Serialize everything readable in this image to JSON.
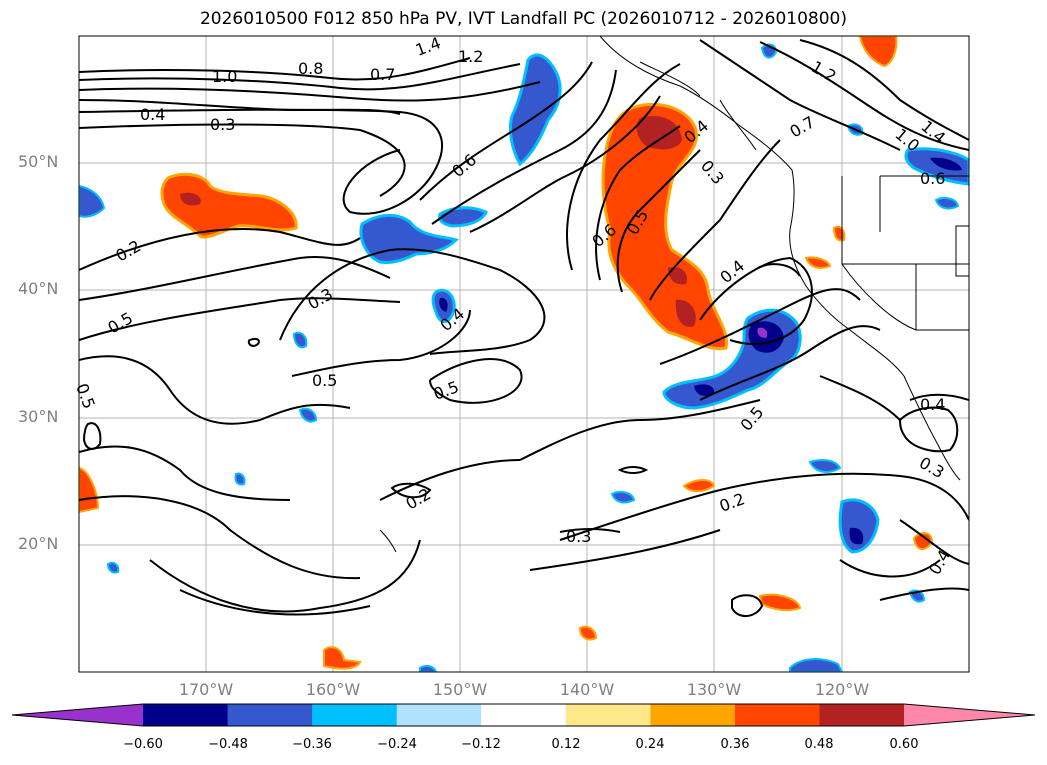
{
  "title": "2026010500 F012 850 hPa PV, IVT Landfall PC (2026010712 - 2026010800)",
  "lat_labels": [
    "50°N",
    "40°N",
    "30°N",
    "20°N"
  ],
  "lon_labels": [
    "170°W",
    "160°W",
    "150°W",
    "140°W",
    "130°W",
    "120°W"
  ],
  "contour_labels": [
    "1.4",
    "1.2",
    "1.0",
    "0.8",
    "0.7",
    "0.4",
    "0.3",
    "0.6",
    "0.2",
    "0.5",
    "0.3",
    "0.4",
    "0.5",
    "0.5",
    "0.5",
    "0.6",
    "0.5",
    "0.4",
    "0.4",
    "0.7",
    "1.2",
    "1.0",
    "1.4",
    "0.6",
    "0.3",
    "0.2",
    "0.3",
    "0.2",
    "0.4",
    "0.3",
    "0.4",
    "0.5"
  ],
  "colorbar": {
    "colors": [
      "#9932cc",
      "#00008b",
      "#3558cf",
      "#00bfff",
      "#b0e2ff",
      "#ffffff",
      "#ffe88a",
      "#ffa500",
      "#ff4500",
      "#b22222",
      "#ff88aa"
    ],
    "ticks": [
      "−0.60",
      "−0.48",
      "−0.36",
      "−0.24",
      "−0.12",
      "0.12",
      "0.24",
      "0.36",
      "0.48",
      "0.60"
    ]
  }
}
